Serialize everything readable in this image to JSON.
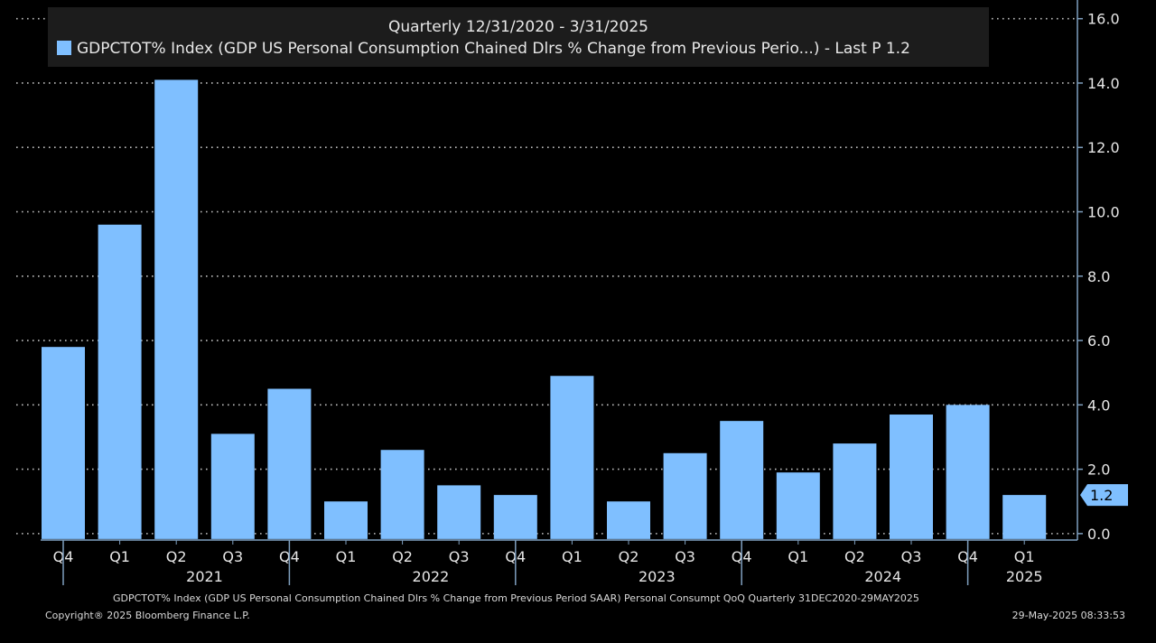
{
  "chart_data": {
    "type": "bar",
    "title": "Quarterly 12/31/2020 - 3/31/2025",
    "legend": {
      "name": "GDPCTOT% Index (GDP US Personal Consumption Chained Dlrs % Change from Previous Perio...) - Last P 1.2",
      "placement": "top"
    },
    "quarters": [
      "Q4",
      "Q1",
      "Q2",
      "Q3",
      "Q4",
      "Q1",
      "Q2",
      "Q3",
      "Q4",
      "Q1",
      "Q2",
      "Q3",
      "Q4",
      "Q1",
      "Q2",
      "Q3",
      "Q4",
      "Q1"
    ],
    "years": [
      {
        "label": "2021",
        "start": 1,
        "end": 4
      },
      {
        "label": "2022",
        "start": 5,
        "end": 8
      },
      {
        "label": "2023",
        "start": 9,
        "end": 12
      },
      {
        "label": "2024",
        "start": 13,
        "end": 16
      },
      {
        "label": "2025",
        "start": 17,
        "end": 17
      }
    ],
    "year_ticks": [
      0,
      4,
      8,
      12,
      16
    ],
    "values": [
      5.8,
      9.6,
      14.1,
      3.1,
      4.5,
      1.0,
      2.6,
      1.5,
      1.2,
      4.9,
      1.0,
      2.5,
      3.5,
      1.9,
      2.8,
      3.7,
      4.0,
      1.2
    ],
    "y_ticks": [
      "0.0",
      "2.0",
      "4.0",
      "6.0",
      "8.0",
      "10.0",
      "12.0",
      "14.0",
      "16.0"
    ],
    "ylim": [
      -0.2,
      16.3
    ],
    "grid": true,
    "last_value_label": "1.2",
    "bar_color": "#7fbfff",
    "axis_color": "#7f9fbf"
  },
  "footer": {
    "description": "GDPCTOT% Index (GDP US Personal Consumption Chained Dlrs % Change from Previous Period SAAR) Personal Consumpt QoQ  Quarterly 31DEC2020-29MAY2025",
    "copyright": "Copyright® 2025 Bloomberg Finance L.P.",
    "timestamp": "29-May-2025 08:33:53"
  }
}
